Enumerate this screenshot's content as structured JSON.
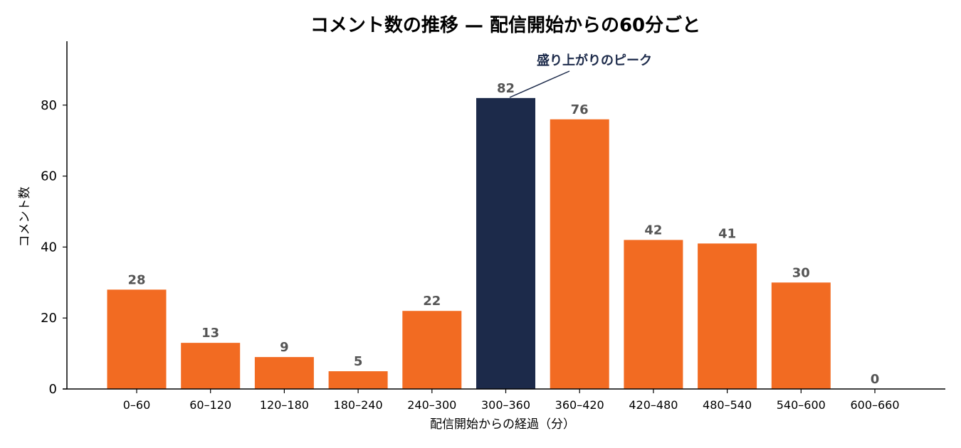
{
  "chart_data": {
    "type": "bar",
    "title": "コメント数の推移 — 配信開始からの60分ごと",
    "xlabel": "配信開始からの経過（分）",
    "ylabel": "コメント数",
    "categories": [
      "0–60",
      "60–120",
      "120–180",
      "180–240",
      "240–300",
      "300–360",
      "360–420",
      "420–480",
      "480–540",
      "540–600",
      "600–660"
    ],
    "values": [
      28,
      13,
      9,
      5,
      22,
      82,
      76,
      42,
      41,
      30,
      0
    ],
    "ylim": [
      0,
      98
    ],
    "yticks": [
      0,
      20,
      40,
      60,
      80
    ],
    "grid": false,
    "highlight_index": 5,
    "annotation": {
      "text": "盛り上がりのピーク",
      "target_index": 5
    },
    "colors": {
      "bar": "#F26B22",
      "highlight": "#1C2A4A",
      "value_label": "#555555",
      "annotation": "#1C2A4A"
    }
  }
}
